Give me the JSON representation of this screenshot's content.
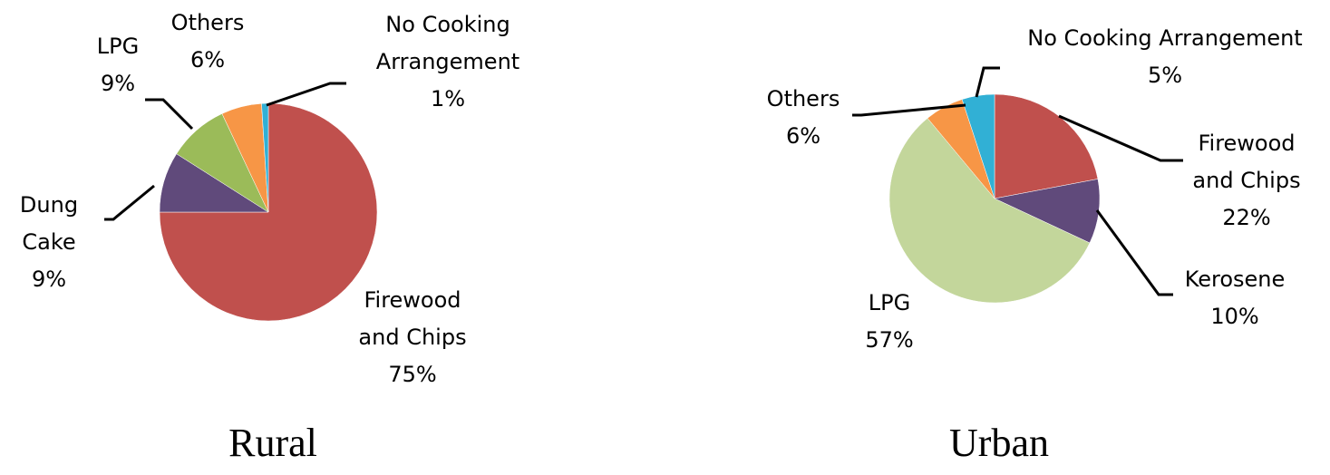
{
  "chart_data": [
    {
      "type": "pie",
      "title": "Rural",
      "unit": "%",
      "slices": [
        {
          "label": [
            "Firewood",
            "and Chips"
          ],
          "value": 75,
          "pct": "75%",
          "color": "#c0504d"
        },
        {
          "label": [
            "Dung",
            "Cake"
          ],
          "value": 9,
          "pct": "9%",
          "color": "#604a7b"
        },
        {
          "label": [
            "LPG"
          ],
          "value": 9,
          "pct": "9%",
          "color": "#9bbb59"
        },
        {
          "label": [
            "Others"
          ],
          "value": 6,
          "pct": "6%",
          "color": "#f79646"
        },
        {
          "label": [
            "No Cooking",
            "Arrangement"
          ],
          "value": 1,
          "pct": "1%",
          "color": "#31b0d5"
        }
      ]
    },
    {
      "type": "pie",
      "title": "Urban",
      "unit": "%",
      "slices": [
        {
          "label": [
            "Firewood",
            "and Chips"
          ],
          "value": 22,
          "pct": "22%",
          "color": "#c0504d"
        },
        {
          "label": [
            "Kerosene"
          ],
          "value": 10,
          "pct": "10%",
          "color": "#604a7b"
        },
        {
          "label": [
            "LPG"
          ],
          "value": 57,
          "pct": "57%",
          "color": "#c3d69b"
        },
        {
          "label": [
            "Others"
          ],
          "value": 6,
          "pct": "6%",
          "color": "#f79646"
        },
        {
          "label": [
            "No Cooking Arrangement"
          ],
          "value": 5,
          "pct": "5%",
          "color": "#31b0d5"
        }
      ]
    }
  ]
}
